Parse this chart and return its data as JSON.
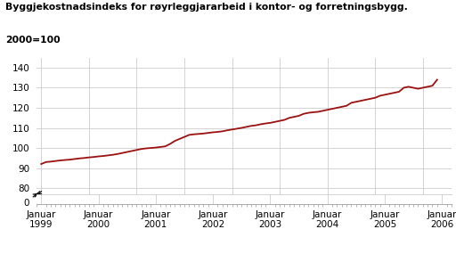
{
  "title_line1": "Byggjekostnadsindeks for røyrleggjararbeid i kontor- og forretningsbygg.",
  "title_line2": "2000=100",
  "line_color": "#9B1010",
  "line_width": 1.3,
  "background_color": "#ffffff",
  "grid_color": "#cccccc",
  "x_tick_labels": [
    "Januar\n1999",
    "Januar\n2000",
    "Januar\n2001",
    "Januar\n2002",
    "Januar\n2003",
    "Januar\n2004",
    "Januar\n2005",
    "Januar\n2006"
  ],
  "x_tick_positions": [
    0,
    12,
    24,
    36,
    48,
    60,
    72,
    84
  ],
  "yticks_upper": [
    80,
    90,
    100,
    110,
    120,
    130,
    140
  ],
  "yticks_lower": [
    0
  ],
  "ylim_upper": [
    77,
    145
  ],
  "ylim_lower": [
    -3,
    10
  ],
  "xlim": [
    -1,
    86
  ],
  "values": [
    92.0,
    93.0,
    93.2,
    93.5,
    93.8,
    94.0,
    94.2,
    94.5,
    94.8,
    95.0,
    95.3,
    95.5,
    95.8,
    96.0,
    96.3,
    96.6,
    97.0,
    97.5,
    98.0,
    98.5,
    99.0,
    99.5,
    99.8,
    100.0,
    100.2,
    100.5,
    100.8,
    102.0,
    103.5,
    104.5,
    105.5,
    106.5,
    106.8,
    107.0,
    107.2,
    107.5,
    107.8,
    108.0,
    108.3,
    108.8,
    109.2,
    109.6,
    110.0,
    110.5,
    111.0,
    111.3,
    111.8,
    112.2,
    112.5,
    113.0,
    113.5,
    114.0,
    115.0,
    115.5,
    116.0,
    117.0,
    117.5,
    117.8,
    118.0,
    118.5,
    119.0,
    119.5,
    120.0,
    120.5,
    121.0,
    122.5,
    123.0,
    123.5,
    124.0,
    124.5,
    125.0,
    126.0,
    126.5,
    127.0,
    127.5,
    128.0,
    130.0,
    130.5,
    130.0,
    129.5,
    130.0,
    130.5,
    131.0,
    134.0
  ]
}
